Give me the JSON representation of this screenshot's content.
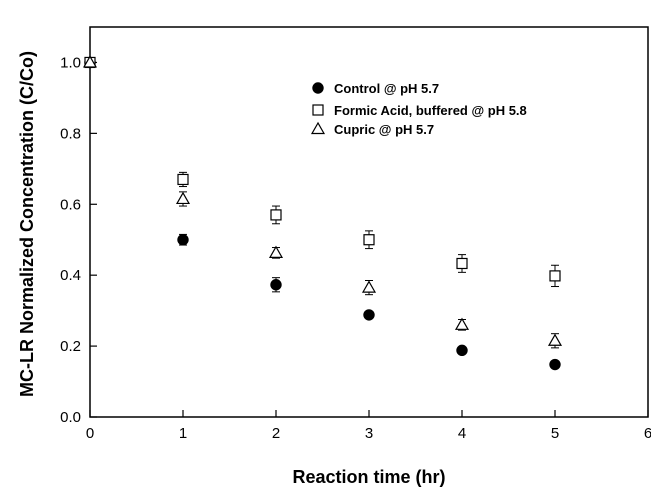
{
  "chart_data": {
    "type": "scatter",
    "xlabel": "Reaction time (hr)",
    "ylabel": "MC-LR Normalized Concentration (C/Co)",
    "xlim": [
      0,
      6
    ],
    "ylim": [
      0,
      1.1
    ],
    "xticks": [
      "0",
      "1",
      "2",
      "3",
      "4",
      "5",
      "6"
    ],
    "yticks": [
      "0.0",
      "0.2",
      "0.4",
      "0.6",
      "0.8",
      "1.0"
    ],
    "grid": false,
    "legend_position": "top-right",
    "series": [
      {
        "name": "Control @ pH 5.7",
        "marker": "filled-circle",
        "color": "#000000",
        "x": [
          0,
          1,
          2,
          3,
          4,
          5
        ],
        "y": [
          1.0,
          0.5,
          0.373,
          0.288,
          0.188,
          0.148
        ],
        "error": [
          0,
          0.015,
          0.02,
          0,
          0,
          0
        ]
      },
      {
        "name": "Formic Acid, buffered @ pH 5.8",
        "marker": "open-square",
        "color": "#000000",
        "x": [
          0,
          1,
          2,
          3,
          4,
          5
        ],
        "y": [
          1.0,
          0.67,
          0.57,
          0.5,
          0.433,
          0.398
        ],
        "error": [
          0,
          0.02,
          0.025,
          0.025,
          0.025,
          0.03
        ]
      },
      {
        "name": "Cupric @ pH 5.7",
        "marker": "open-triangle",
        "color": "#000000",
        "x": [
          0,
          1,
          2,
          3,
          4,
          5
        ],
        "y": [
          1.0,
          0.615,
          0.463,
          0.365,
          0.26,
          0.215
        ],
        "error": [
          0,
          0.02,
          0.015,
          0.02,
          0.015,
          0.02
        ]
      }
    ]
  }
}
